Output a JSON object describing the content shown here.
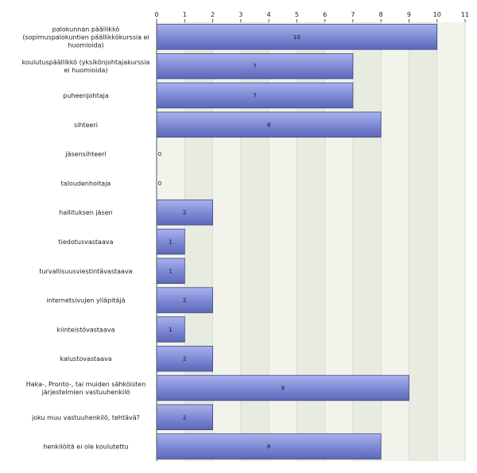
{
  "chart_data": {
    "type": "bar",
    "orientation": "horizontal",
    "title": "",
    "xlabel": "",
    "ylabel": "",
    "xlim": [
      0,
      11
    ],
    "ticks": [
      0,
      1,
      2,
      3,
      4,
      5,
      6,
      7,
      8,
      9,
      10,
      11
    ],
    "grid": true,
    "categories": [
      [
        "palokunnan päällikkö",
        "(sopimuspalokuntien päällikkökurssia ei",
        "huomioida)"
      ],
      [
        "koulutuspäällikkö (yksikönjohtajakurssia",
        "ei huomioida)"
      ],
      [
        "puheenjohtaja"
      ],
      [
        "sihteeri"
      ],
      [
        "jäsensihteeri"
      ],
      [
        "taloudenhoitaja"
      ],
      [
        "hallituksen jäsen"
      ],
      [
        "tiedotusvastaava"
      ],
      [
        "turvallisuusviestintävastaava"
      ],
      [
        "internetsivujen ylläpitäjä"
      ],
      [
        "kiinteistövastaava"
      ],
      [
        "kalustovastaava"
      ],
      [
        "Haka-, Pronto-, tai muiden sähköisten",
        "järjestelmien vastuuhenkilö"
      ],
      [
        "joku muu vastuuhenkilö, tehtävä?"
      ],
      [
        "henkilöitä ei ole koulutettu"
      ]
    ],
    "values": [
      10,
      7,
      7,
      8,
      0,
      0,
      2,
      1,
      1,
      2,
      1,
      2,
      9,
      2,
      8
    ],
    "colors": {
      "bar_fill": "#7f8bd6",
      "bar_edge": "#3d4680",
      "plot_bg": "#f2f4ec",
      "alt_band": "#e8ebe0",
      "grid": "#d8dbd0",
      "axis": "#555555"
    }
  }
}
